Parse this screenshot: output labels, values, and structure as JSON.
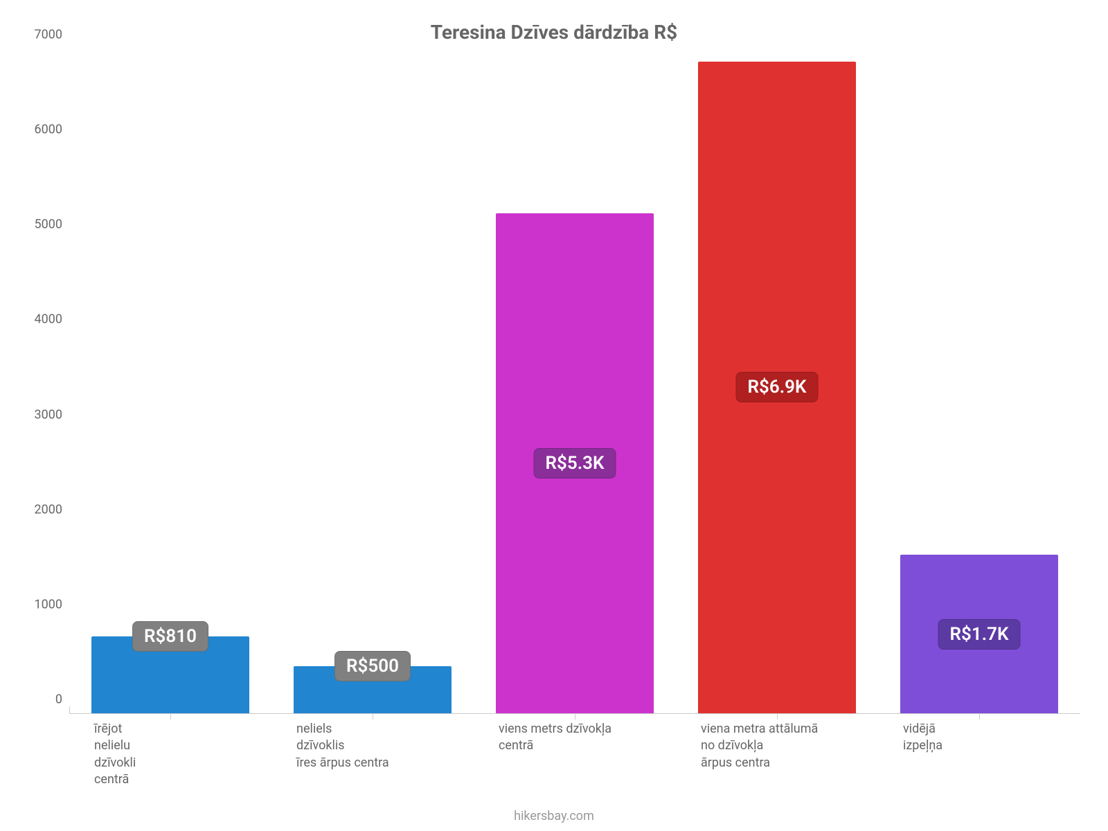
{
  "chart": {
    "type": "bar",
    "title": "Teresina Dzīves dārdzība R$",
    "title_fontsize": 28,
    "title_color": "#666666",
    "background_color": "#ffffff",
    "axis_color": "#cccccc",
    "label_color": "#666666",
    "label_fontsize": 18,
    "ylim_min": 0,
    "ylim_max": 7000,
    "ytick_step": 1000,
    "yticks": [
      "0",
      "1000",
      "2000",
      "3000",
      "4000",
      "5000",
      "6000",
      "7000"
    ],
    "bar_width_pct": 78,
    "value_badge_fontsize": 26,
    "value_badge_text_color": "#ffffff",
    "bars": [
      {
        "label": "īrējot\nnelielu\ndzīvokli\ncentrā",
        "value": 810,
        "display": "R$810",
        "color": "#2185d0",
        "badge_color": "#808080",
        "badge_at_top": true
      },
      {
        "label": "neliels\ndzīvoklis\nīres ārpus centra",
        "value": 500,
        "display": "R$500",
        "color": "#2185d0",
        "badge_color": "#808080",
        "badge_at_top": true
      },
      {
        "label": "viens metrs dzīvokļa\ncentrā",
        "value": 5270,
        "display": "R$5.3K",
        "color": "#cc33cc",
        "badge_color": "#8a2e99",
        "badge_at_top": false
      },
      {
        "label": "viena metra attālumā\nno dzīvokļa\nārpus centra",
        "value": 6870,
        "display": "R$6.9K",
        "color": "#e03131",
        "badge_color": "#b02020",
        "badge_at_top": false
      },
      {
        "label": "vidējā\nizpeļņa",
        "value": 1670,
        "display": "R$1.7K",
        "color": "#7e4ed9",
        "badge_color": "#5c3aa3",
        "badge_at_top": false
      }
    ],
    "footer": "hikersbay.com",
    "footer_color": "#999999",
    "footer_fontsize": 18
  }
}
